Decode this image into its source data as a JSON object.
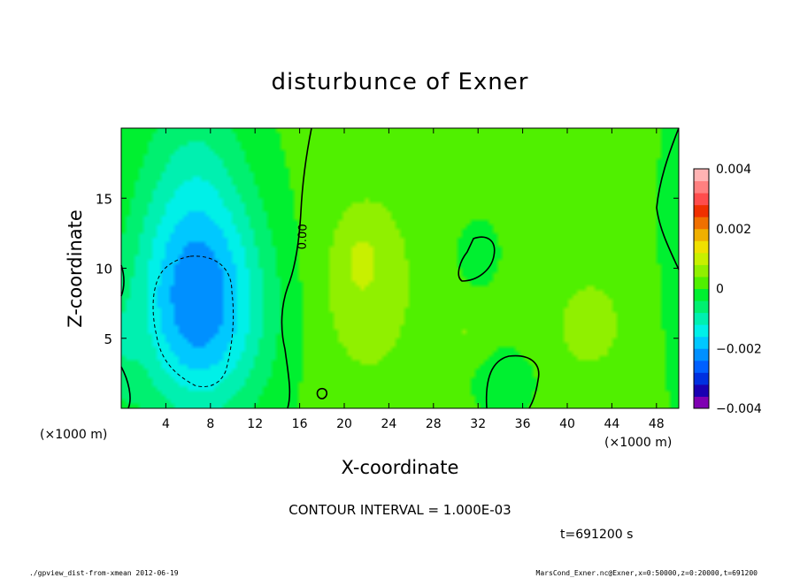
{
  "chart_data": {
    "type": "heatmap",
    "title": "disturbunce of Exner",
    "xlabel": "X-coordinate",
    "ylabel": "Z-coordinate",
    "x_unit": "(×1000 m)",
    "x_unit_right": "(×1000 m)",
    "xlim": [
      0,
      50
    ],
    "ylim": [
      0,
      20
    ],
    "x_ticks": [
      4,
      8,
      12,
      16,
      20,
      24,
      28,
      32,
      36,
      40,
      44,
      48
    ],
    "y_ticks": [
      5,
      10,
      15
    ],
    "contour_interval_text": "CONTOUR INTERVAL = 1.000E-03",
    "contour_label": "0.00",
    "time_text": "t=691200 s",
    "colorbar": {
      "min": -0.004,
      "max": 0.004,
      "tick_labels": [
        "0.004",
        "0.002",
        "0",
        "−0.002",
        "−0.004"
      ],
      "tick_values": [
        0.004,
        0.002,
        0,
        -0.002,
        -0.004
      ],
      "colors": [
        "#7f00b2",
        "#1a00b2",
        "#0030e0",
        "#0060ff",
        "#0090ff",
        "#00c8ff",
        "#00f0e8",
        "#00f0b0",
        "#00f070",
        "#00f030",
        "#50f000",
        "#90f000",
        "#c8f000",
        "#f0e000",
        "#f0b000",
        "#f07000",
        "#f03000",
        "#ff4d4d",
        "#ff8080",
        "#ffb3b3"
      ]
    },
    "field": {
      "background_value": 0.0001,
      "blobs": [
        {
          "x": 7,
          "z": 7,
          "sx": 4.2,
          "sz": 5.5,
          "amp": -0.0022
        },
        {
          "x": 6.5,
          "z": 16,
          "sx": 3.5,
          "sz": 6,
          "amp": -0.0008
        },
        {
          "x": 22,
          "z": 9,
          "sx": 3.2,
          "sz": 5,
          "amp": 0.0006
        },
        {
          "x": 21.5,
          "z": 10.5,
          "sx": 0.9,
          "sz": 1.2,
          "amp": 0.0004
        },
        {
          "x": 31,
          "z": 5.5,
          "sx": 1.5,
          "sz": 1.5,
          "amp": 0.0003
        },
        {
          "x": 42,
          "z": 6,
          "sx": 3.2,
          "sz": 3.5,
          "amp": 0.0004
        },
        {
          "x": 32,
          "z": 11,
          "sx": 1.2,
          "sz": 1.5,
          "amp": -0.0004
        },
        {
          "x": 34.5,
          "z": 2,
          "sx": 2,
          "sz": 1.6,
          "amp": -0.0004
        },
        {
          "x": 50,
          "z": 12,
          "sx": 1.2,
          "sz": 8,
          "amp": -0.0004
        },
        {
          "x": 0,
          "z": 4,
          "sx": 1,
          "sz": 3,
          "amp": -0.0004
        }
      ]
    }
  },
  "footer": {
    "left": "./gpview_dist-from-xmean  2012-06-19",
    "right": "MarsCond_Exner.nc@Exner,x=0:50000,z=0:20000,t=691200"
  }
}
